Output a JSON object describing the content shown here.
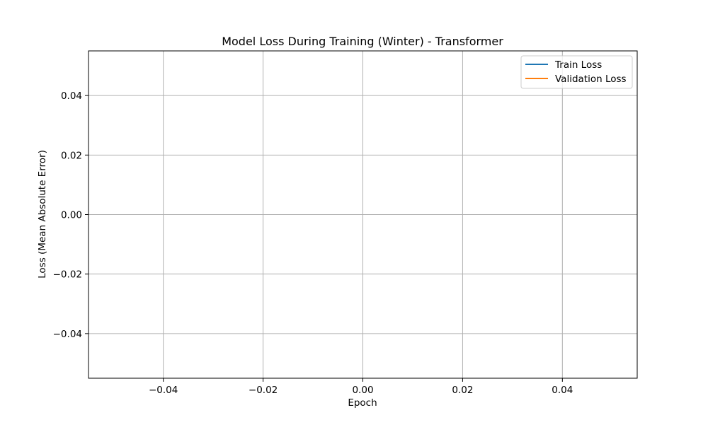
{
  "chart_data": {
    "type": "line",
    "title": "Model Loss During Training (Winter) - Transformer",
    "xlabel": "Epoch",
    "ylabel": "Loss (Mean Absolute Error)",
    "xlim": [
      -0.055,
      0.055
    ],
    "ylim": [
      -0.055,
      0.055
    ],
    "x_ticks": [
      -0.04,
      -0.02,
      0.0,
      0.02,
      0.04
    ],
    "x_tick_labels": [
      "−0.04",
      "−0.02",
      "0.00",
      "0.02",
      "0.04"
    ],
    "y_ticks": [
      -0.04,
      -0.02,
      0.0,
      0.02,
      0.04
    ],
    "y_tick_labels": [
      "−0.04",
      "−0.02",
      "0.00",
      "0.02",
      "0.04"
    ],
    "grid": true,
    "legend_position": "top-right",
    "series": [
      {
        "name": "Train Loss",
        "color": "#1f77b4",
        "x": [],
        "y": []
      },
      {
        "name": "Validation Loss",
        "color": "#ff7f0e",
        "x": [],
        "y": []
      }
    ]
  }
}
